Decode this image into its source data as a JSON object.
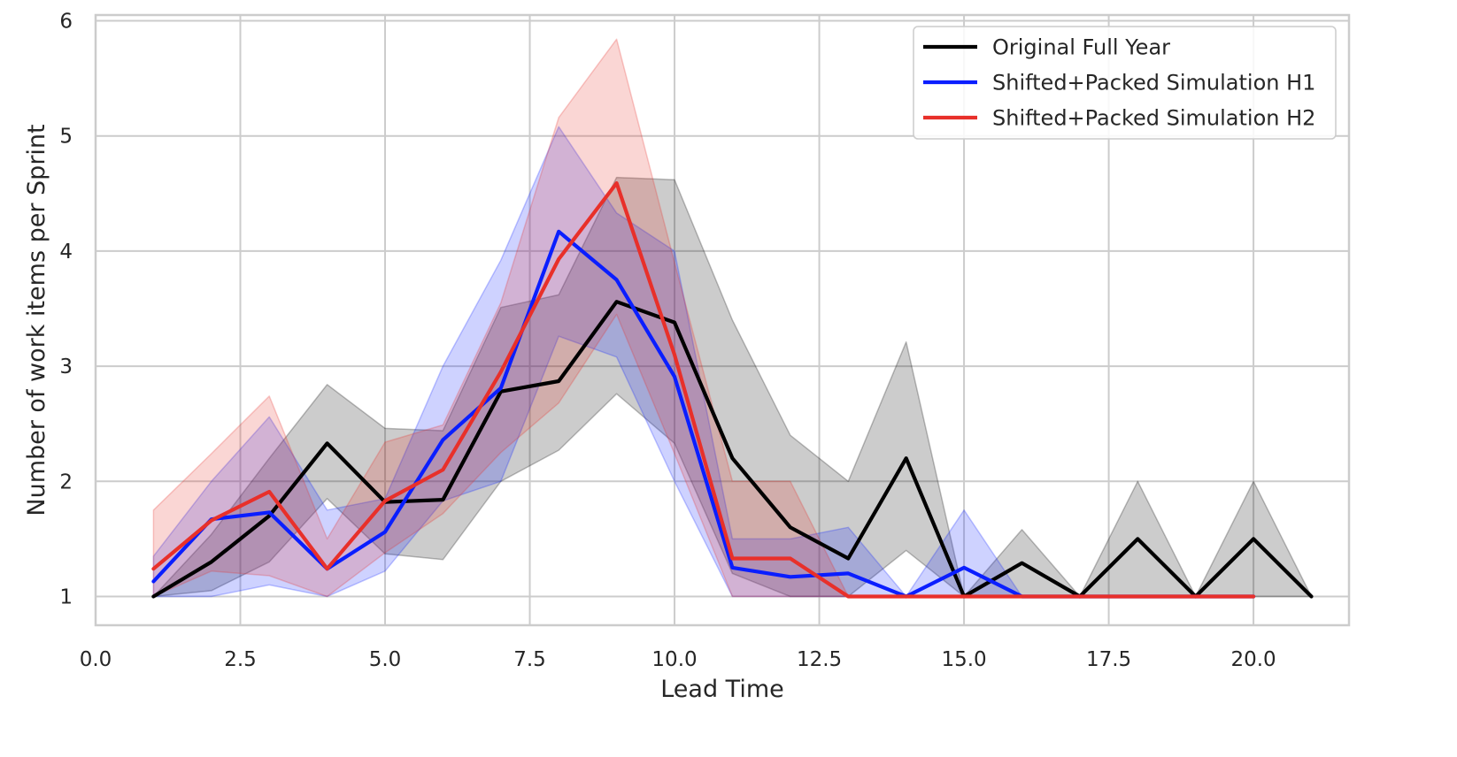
{
  "chart_data": {
    "type": "line",
    "title": "",
    "xlabel": "Lead Time",
    "ylabel": "Number of work items per Sprint",
    "xlim": [
      0.0,
      21.65
    ],
    "ylim": [
      0.75,
      6.05
    ],
    "xticks": [
      0.0,
      2.5,
      5.0,
      7.5,
      10.0,
      12.5,
      15.0,
      17.5,
      20.0
    ],
    "xtick_labels": [
      "0.0",
      "2.5",
      "5.0",
      "7.5",
      "10.0",
      "12.5",
      "15.0",
      "17.5",
      "20.0"
    ],
    "yticks": [
      1,
      2,
      3,
      4,
      5,
      6
    ],
    "ytick_labels": [
      "1",
      "2",
      "3",
      "4",
      "5",
      "6"
    ],
    "grid": true,
    "legend_position": "top-right",
    "series": [
      {
        "name": "Original Full Year",
        "color": "#000000",
        "x": [
          1,
          2,
          3,
          4,
          5,
          6,
          7,
          8,
          9,
          10,
          11,
          12,
          13,
          14,
          15,
          16,
          17,
          18,
          19,
          20,
          21
        ],
        "y": [
          1.0,
          1.3,
          1.7,
          2.33,
          1.82,
          1.84,
          2.78,
          2.87,
          3.56,
          3.38,
          2.2,
          1.6,
          1.33,
          2.2,
          1.0,
          1.29,
          1.0,
          1.5,
          1.0,
          1.5,
          1.0
        ],
        "band_lower": [
          1.0,
          1.05,
          1.3,
          1.85,
          1.37,
          1.32,
          2.0,
          2.27,
          2.76,
          2.33,
          1.2,
          1.0,
          1.0,
          1.4,
          1.0,
          1.0,
          1.0,
          1.0,
          1.0,
          1.0,
          1.0
        ],
        "band_upper": [
          1.0,
          1.54,
          2.2,
          2.84,
          2.46,
          2.44,
          3.51,
          3.62,
          4.64,
          4.62,
          3.4,
          2.4,
          2.0,
          3.21,
          1.0,
          1.58,
          1.0,
          2.0,
          1.0,
          2.0,
          1.0
        ]
      },
      {
        "name": "Shifted+Packed Simulation H1",
        "color": "#0a1eff",
        "x": [
          1,
          2,
          3,
          4,
          5,
          6,
          7,
          8,
          9,
          10,
          11,
          12,
          13,
          14,
          15,
          16,
          17,
          18,
          19,
          20
        ],
        "y": [
          1.13,
          1.67,
          1.73,
          1.24,
          1.56,
          2.36,
          2.81,
          4.17,
          3.75,
          2.91,
          1.25,
          1.17,
          1.2,
          1.0,
          1.25,
          1.0,
          1.0,
          1.0,
          1.0,
          1.0
        ],
        "band_lower": [
          1.0,
          1.0,
          1.1,
          1.0,
          1.22,
          1.83,
          2.0,
          3.26,
          3.08,
          2.0,
          1.0,
          1.0,
          1.0,
          1.0,
          1.0,
          1.0,
          1.0,
          1.0,
          1.0,
          1.0
        ],
        "band_upper": [
          1.35,
          2.0,
          2.56,
          1.75,
          1.85,
          3.0,
          3.92,
          5.08,
          4.33,
          4.0,
          1.5,
          1.5,
          1.6,
          1.0,
          1.75,
          1.0,
          1.0,
          1.0,
          1.0,
          1.0
        ]
      },
      {
        "name": "Shifted+Packed Simulation H2",
        "color": "#e8302a",
        "x": [
          1,
          2,
          3,
          4,
          5,
          6,
          7,
          8,
          9,
          10,
          11,
          12,
          13,
          14,
          15,
          16,
          17,
          18,
          19,
          20
        ],
        "y": [
          1.24,
          1.66,
          1.91,
          1.24,
          1.83,
          2.1,
          2.95,
          3.93,
          4.59,
          3.1,
          1.33,
          1.33,
          1.0,
          1.0,
          1.0,
          1.0,
          1.0,
          1.0,
          1.0,
          1.0
        ],
        "band_lower": [
          1.0,
          1.22,
          1.18,
          1.0,
          1.38,
          1.72,
          2.25,
          2.68,
          3.45,
          2.24,
          1.0,
          1.0,
          1.0,
          1.0,
          1.0,
          1.0,
          1.0,
          1.0,
          1.0,
          1.0
        ],
        "band_upper": [
          1.75,
          2.24,
          2.74,
          1.5,
          2.34,
          2.49,
          3.55,
          5.16,
          5.84,
          3.9,
          2.0,
          2.0,
          1.0,
          1.0,
          1.0,
          1.0,
          1.0,
          1.0,
          1.0,
          1.0
        ]
      }
    ]
  }
}
